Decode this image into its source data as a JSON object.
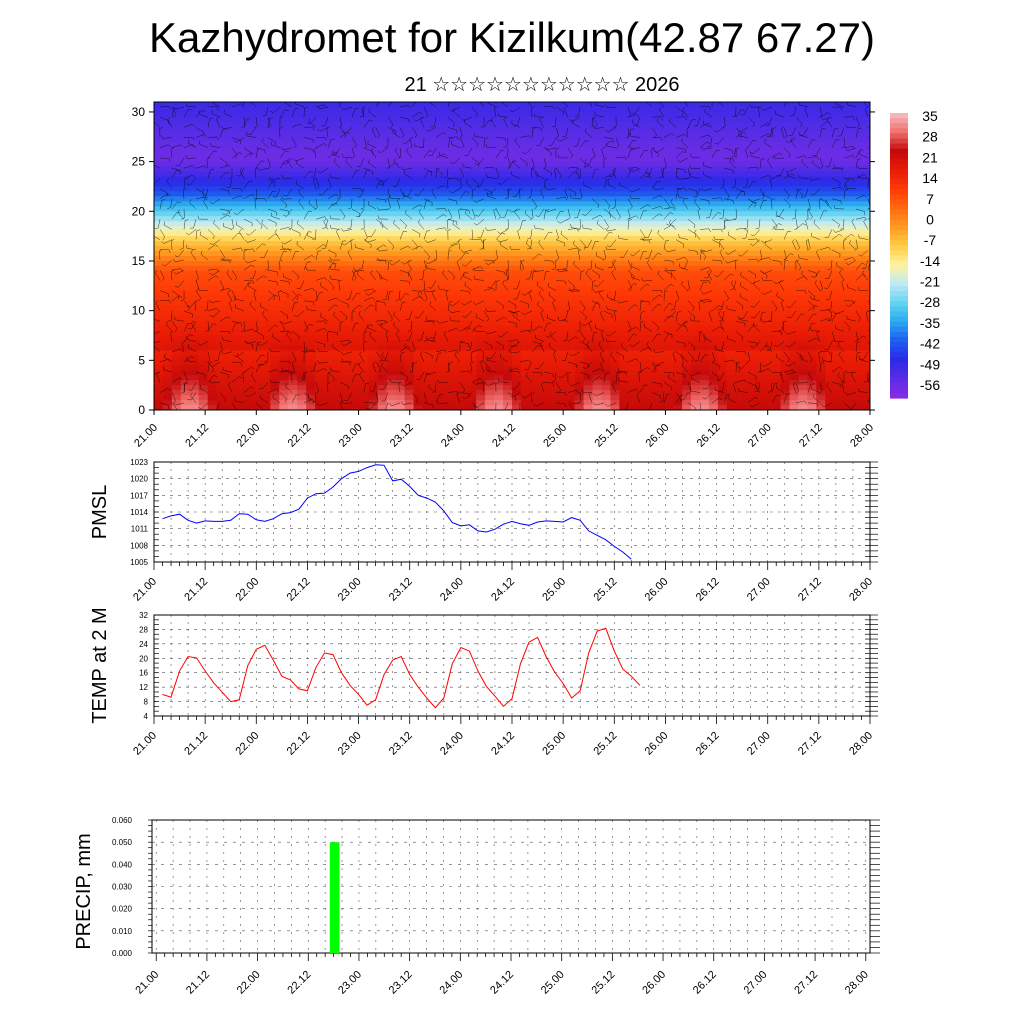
{
  "title": "Kazhydromet for Kizilkum(42.87 67.27)",
  "subtitle": "21 ☆☆☆☆☆☆☆☆☆☆☆ 2026",
  "time_labels": [
    "21.00",
    "21.12",
    "22.00",
    "22.12",
    "23.00",
    "23.12",
    "24.00",
    "24.12",
    "25.00",
    "25.12",
    "26.00",
    "26.12",
    "27.00",
    "27.12",
    "28.00"
  ],
  "colors": {
    "pmsl_line": "#0000ff",
    "temp_line": "#ff0000",
    "precip_bar": "#00ff00",
    "grid": "#555555"
  },
  "chart_data": [
    {
      "type": "heatmap",
      "name": "upper-air",
      "x": [
        "21.00",
        "21.12",
        "22.00",
        "22.12",
        "23.00",
        "23.12",
        "24.00",
        "24.12",
        "25.00",
        "25.12",
        "26.00",
        "26.12",
        "27.00",
        "27.12",
        "28.00"
      ],
      "ylim": [
        0,
        31
      ],
      "yticks": [
        0,
        5,
        10,
        15,
        20,
        25,
        30
      ],
      "colorbar_labels": [
        "35",
        "28",
        "21",
        "14",
        "7",
        "0",
        "-7",
        "-14",
        "-21",
        "-28",
        "-35",
        "-42",
        "-49",
        "-56"
      ],
      "colorbar_range": [
        -63,
        42
      ],
      "colorbar_colors": [
        "#8a2be2",
        "#5b2ce6",
        "#2a2ae8",
        "#1f5cf0",
        "#2aa8f0",
        "#62d4f2",
        "#bfe9f4",
        "#fff3a0",
        "#ffcc44",
        "#ff9a22",
        "#ff6a10",
        "#ff3a06",
        "#e81a06",
        "#c40a0a",
        "#f07070",
        "#f8c0c0"
      ],
      "overlay": "wind barbs"
    },
    {
      "type": "line",
      "name": "PMSL",
      "ylabel": "PMSL",
      "ylim": [
        1005,
        1023
      ],
      "yticks": [
        1005,
        1008,
        1011,
        1014,
        1017,
        1020,
        1023
      ],
      "x_steps": 6,
      "values": [
        1012.8,
        1013.3,
        1013.6,
        1012.5,
        1012.0,
        1012.4,
        1012.3,
        1012.3,
        1012.5,
        1013.7,
        1013.6,
        1012.6,
        1012.3,
        1012.8,
        1013.7,
        1013.9,
        1014.5,
        1016.5,
        1017.3,
        1017.4,
        1018.5,
        1020.0,
        1021.0,
        1021.3,
        1022.0,
        1022.5,
        1022.4,
        1019.6,
        1019.9,
        1018.6,
        1017.0,
        1016.5,
        1015.8,
        1014.2,
        1012.1,
        1011.5,
        1011.7,
        1010.6,
        1010.4,
        1010.9,
        1011.8,
        1012.3,
        1011.9,
        1011.6,
        1012.2,
        1012.4,
        1012.3,
        1012.2,
        1013.0,
        1012.5,
        1010.6,
        1009.8,
        1009.0,
        1007.8,
        1006.8,
        1005.5
      ]
    },
    {
      "type": "line",
      "name": "TEMP at 2 M",
      "ylabel": "TEMP at 2 M",
      "ylim": [
        4,
        32
      ],
      "yticks": [
        4,
        8,
        12,
        16,
        20,
        24,
        28,
        32
      ],
      "x_steps": 6,
      "values": [
        10.0,
        9.2,
        16.5,
        20.5,
        20.1,
        16.5,
        13.2,
        10.6,
        8.0,
        8.5,
        18.0,
        22.5,
        23.6,
        19.5,
        15.0,
        14.0,
        11.5,
        11.0,
        17.5,
        21.5,
        21.0,
        16.0,
        12.5,
        10.0,
        7.0,
        8.5,
        15.5,
        19.5,
        20.5,
        15.5,
        12.0,
        9.0,
        6.3,
        9.0,
        18.5,
        23.0,
        22.0,
        16.5,
        12.2,
        9.5,
        6.7,
        8.8,
        18.5,
        24.5,
        25.8,
        20.5,
        16.2,
        13.0,
        9.0,
        11.0,
        21.5,
        27.5,
        28.3,
        22.0,
        17.0,
        15.0,
        12.5
      ]
    },
    {
      "type": "bar",
      "name": "PRECIP, mm",
      "ylabel": "PRECIP, mm",
      "ylim": [
        0,
        0.06
      ],
      "ytick_labels": [
        "0.000",
        "0.010",
        "0.020",
        "0.030",
        "0.040",
        "0.050",
        "0.060"
      ],
      "x_steps": 6,
      "values": [
        {
          "step": 21,
          "value": 0.05
        }
      ]
    }
  ]
}
